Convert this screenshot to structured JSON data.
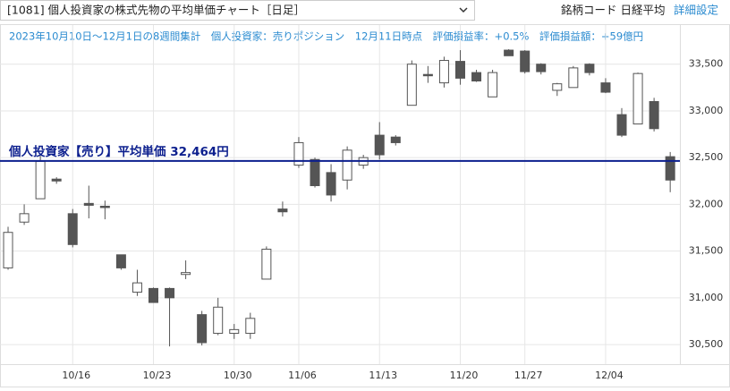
{
  "header": {
    "title": "[1081] 個人投資家の株式先物の平均単価チャート［日足］",
    "code_label": "銘柄コード 日経平均",
    "settings": "詳細設定"
  },
  "chart_data": {
    "type": "candlestick",
    "subtitle": "2023年10月10日～12月1日の8週間集計　個人投資家：売りポジション　12月11日時点　評価損益率：+0.5%　評価損益額：+59億円",
    "open": [
      31320,
      31810,
      32060,
      32270,
      31900,
      32010,
      31980,
      31460,
      31060,
      31100,
      31100,
      31250,
      30820,
      30620,
      30620,
      30620,
      31200,
      31950,
      32420,
      32480,
      32340,
      32260,
      32420,
      32740,
      32720,
      33060,
      33390,
      33300,
      33530,
      33410,
      33150,
      33650,
      33640,
      33500,
      33220,
      33250,
      33500,
      33300,
      32960,
      32860,
      33100,
      32510
    ],
    "high": [
      31760,
      32000,
      32520,
      32290,
      31950,
      32200,
      32040,
      31460,
      31300,
      31110,
      31110,
      31400,
      30860,
      31000,
      30720,
      30840,
      31550,
      32030,
      32720,
      32500,
      32430,
      32620,
      32530,
      32880,
      32740,
      33540,
      33480,
      33580,
      33650,
      33440,
      33440,
      33660,
      33650,
      33510,
      33300,
      33480,
      33510,
      33350,
      33030,
      33410,
      33140,
      32560
    ],
    "low": [
      31300,
      31780,
      32060,
      32220,
      31540,
      31850,
      31840,
      31300,
      31020,
      30950,
      30480,
      31200,
      30490,
      30600,
      30560,
      30560,
      31200,
      31870,
      32390,
      32180,
      32030,
      32160,
      32380,
      32480,
      32630,
      33060,
      33300,
      33250,
      33280,
      33310,
      33150,
      33590,
      33400,
      33390,
      33160,
      33250,
      33380,
      33190,
      32720,
      32860,
      32780,
      32130
    ],
    "close": [
      31700,
      31900,
      32460,
      32250,
      31570,
      31990,
      31970,
      31320,
      31160,
      30950,
      31000,
      31270,
      30520,
      30900,
      30660,
      30780,
      31520,
      31920,
      32660,
      32200,
      32100,
      32580,
      32500,
      32530,
      32660,
      33500,
      33380,
      33540,
      33350,
      33320,
      33410,
      33590,
      33420,
      33420,
      33290,
      33460,
      33410,
      33200,
      32740,
      33400,
      32810,
      32260
    ],
    "up_color": "#ffffff",
    "down_color": "#555555",
    "edge_color": "#555555",
    "avg_line": {
      "value": 32464,
      "label": "個人投資家【売り】平均単価 32,464円",
      "color": "#0c1f8e"
    },
    "xlim": [
      -0.5,
      41.6
    ],
    "xticks": [
      {
        "value": 4,
        "label": "10/16"
      },
      {
        "value": 9,
        "label": "10/23"
      },
      {
        "value": 14,
        "label": "10/30"
      },
      {
        "value": 18,
        "label": "11/06"
      },
      {
        "value": 23,
        "label": "11/13"
      },
      {
        "value": 28,
        "label": "11/20"
      },
      {
        "value": 32,
        "label": "11/27"
      },
      {
        "value": 37,
        "label": "12/04"
      }
    ],
    "ylim": [
      30290,
      33660
    ],
    "yticks": [
      {
        "value": 30500,
        "label": "30,500"
      },
      {
        "value": 31000,
        "label": "31,000"
      },
      {
        "value": 31500,
        "label": "31,500"
      },
      {
        "value": 32000,
        "label": "32,000"
      },
      {
        "value": 32500,
        "label": "32,500"
      },
      {
        "value": 33000,
        "label": "33,000"
      },
      {
        "value": 33500,
        "label": "33,500"
      }
    ],
    "grid": true
  }
}
